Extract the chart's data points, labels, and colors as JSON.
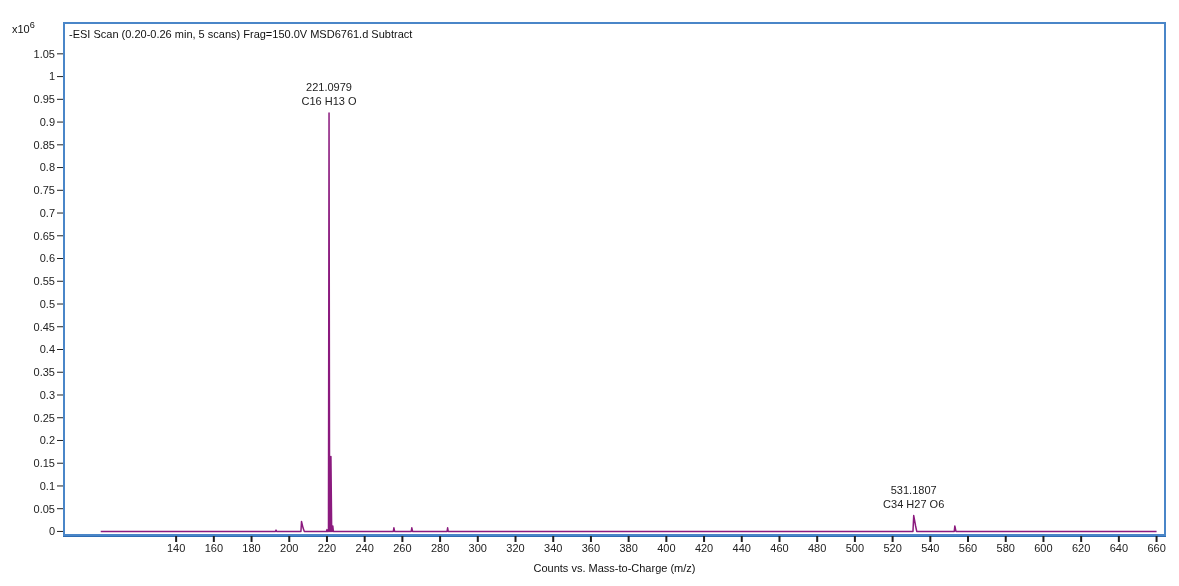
{
  "chart_data": {
    "type": "line",
    "title": "-ESI Scan (0.20-0.26 min, 5 scans) Frag=150.0V MSD6761.d  Subtract",
    "xlabel": "Counts vs. Mass-to-Charge (m/z)",
    "ylabel": "x10$^{6}$",
    "x": [
      100,
      192.7,
      193,
      193.3,
      206.2,
      206.5,
      207.3,
      208,
      219.7,
      220,
      220.3,
      220.8,
      221.1,
      221.4,
      221.8,
      222.1,
      222.5,
      222.8,
      223.1,
      223.4,
      255.2,
      255.5,
      255.9,
      264.7,
      265,
      265.4,
      283.7,
      284,
      284.3,
      530.8,
      531.2,
      532.2,
      532.8,
      552.7,
      553,
      553.6,
      660
    ],
    "series": [
      {
        "color": "#8b1a7e",
        "values": [
          0,
          0,
          0.003,
          0,
          0,
          0.022,
          0.008,
          0,
          0,
          0.004,
          0,
          0,
          0.92,
          0,
          0,
          0.165,
          0,
          0,
          0.012,
          0,
          0,
          0.008,
          0,
          0,
          0.008,
          0,
          0,
          0.008,
          0,
          0,
          0.035,
          0.012,
          0,
          0,
          0.012,
          0,
          0
        ]
      }
    ],
    "xlim": [
      80,
      665
    ],
    "xticks": [
      140,
      160,
      180,
      200,
      220,
      240,
      260,
      280,
      300,
      320,
      340,
      360,
      380,
      400,
      420,
      440,
      460,
      480,
      500,
      520,
      540,
      560,
      580,
      600,
      620,
      640,
      660
    ],
    "ylim": [
      -0.01,
      1.12
    ],
    "yticks": [
      0,
      0.05,
      0.1,
      0.15,
      0.2,
      0.25,
      0.3,
      0.35,
      0.4,
      0.45,
      0.5,
      0.55,
      0.6,
      0.65,
      0.7,
      0.75,
      0.8,
      0.85,
      0.9,
      0.95,
      1,
      1.05
    ],
    "annotations": [
      {
        "text": "221.0979\nC16 H13 O",
        "x": 221.0979,
        "y": 0.92
      },
      {
        "text": "531.1807\nC34 H27 O6",
        "x": 531.1807,
        "y": 0.035
      }
    ],
    "grid": false,
    "legend": false,
    "marker": "none",
    "line_style": "solid"
  }
}
